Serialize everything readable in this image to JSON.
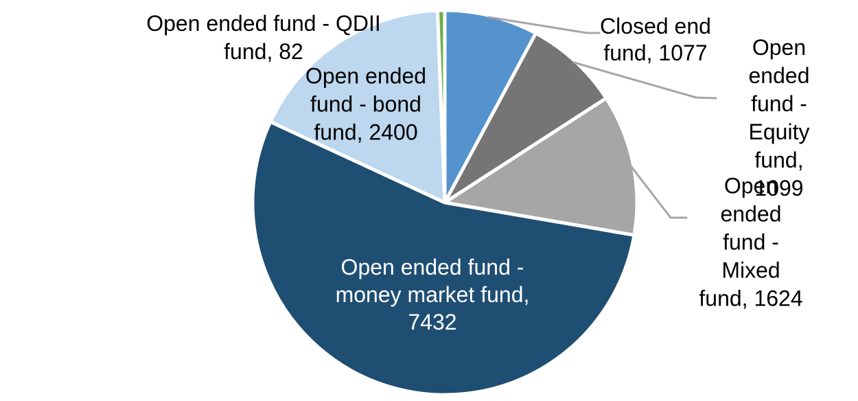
{
  "chart_data": {
    "type": "pie",
    "title": "",
    "total": 13714,
    "direction": "clockwise",
    "start_angle_deg": 0,
    "slice_border_color": "#FFFFFF",
    "leader_line_color": "#A6A6A6",
    "label_text_color": "#000000",
    "inner_label_text_color": "#FFFFFF",
    "segments": [
      {
        "label": "Closed end fund",
        "value": 1077,
        "color": "#5593CE",
        "display": "Closed end\nfund, 1077"
      },
      {
        "label": "Open ended fund - Equity fund",
        "value": 1099,
        "color": "#757575",
        "display": "Open ended\nfund - Equity\nfund, 1099"
      },
      {
        "label": "Open ended fund - Mixed fund",
        "value": 1624,
        "color": "#A6A6A6",
        "display": "Open ended\nfund - Mixed\nfund, 1624"
      },
      {
        "label": "Open ended fund - money market fund",
        "value": 7432,
        "color": "#1F4E73",
        "display": "Open ended fund -\nmoney market fund,\n7432"
      },
      {
        "label": "Open ended fund - bond fund",
        "value": 2400,
        "color": "#BDD7EE",
        "display": "Open ended\nfund - bond\nfund, 2400"
      },
      {
        "label": "Open ended fund - QDII fund",
        "value": 82,
        "color": "#6FAE4B",
        "display": "Open ended fund - QDII\nfund, 82"
      }
    ]
  }
}
